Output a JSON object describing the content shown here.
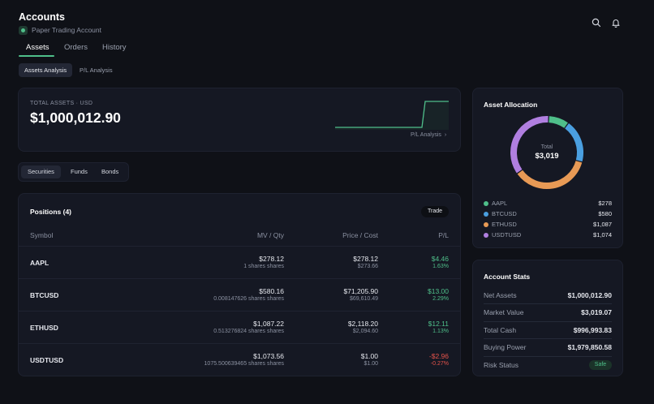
{
  "header": {
    "title": "Accounts",
    "account_name": "Paper Trading Account",
    "search_icon": "search-icon",
    "bell_icon": "bell-icon"
  },
  "tabs": [
    "Assets",
    "Orders",
    "History"
  ],
  "subtabs": [
    "Assets Analysis",
    "P/L Analysis"
  ],
  "total": {
    "label": "TOTAL ASSETS · USD",
    "value": "$1,000,012.90",
    "link": "P/L Analysis"
  },
  "segments": [
    "Securities",
    "Funds",
    "Bonds"
  ],
  "positions": {
    "title": "Positions (4)",
    "trade_label": "Trade",
    "headers": [
      "Symbol",
      "MV / Qty",
      "Price / Cost",
      "P/L"
    ],
    "rows": [
      {
        "symbol": "AAPL",
        "mv": "$278.12",
        "qty": "1 shares shares",
        "price": "$278.12",
        "cost": "$273.66",
        "pl": "$4.46",
        "pl_pct": "1.63%",
        "dir": "up"
      },
      {
        "symbol": "BTCUSD",
        "mv": "$580.16",
        "qty": "0.008147626 shares shares",
        "price": "$71,205.90",
        "cost": "$69,610.49",
        "pl": "$13.00",
        "pl_pct": "2.29%",
        "dir": "up"
      },
      {
        "symbol": "ETHUSD",
        "mv": "$1,087.22",
        "qty": "0.513276824 shares shares",
        "price": "$2,118.20",
        "cost": "$2,094.60",
        "pl": "$12.11",
        "pl_pct": "1.13%",
        "dir": "up"
      },
      {
        "symbol": "USDTUSD",
        "mv": "$1,073.56",
        "qty": "1075.500639465 shares shares",
        "price": "$1.00",
        "cost": "$1.00",
        "pl": "-$2.96",
        "pl_pct": "-0.27%",
        "dir": "down"
      }
    ]
  },
  "allocation": {
    "title": "Asset Allocation",
    "center_label": "Total",
    "center_value": "$3,019",
    "items": [
      {
        "name": "AAPL",
        "value": "$278",
        "amount": 278,
        "color": "#4fbf8a"
      },
      {
        "name": "BTCUSD",
        "value": "$580",
        "amount": 580,
        "color": "#4a9fe0"
      },
      {
        "name": "ETHUSD",
        "value": "$1,087",
        "amount": 1087,
        "color": "#e89a55"
      },
      {
        "name": "USDTUSD",
        "value": "$1,074",
        "amount": 1074,
        "color": "#b07fe0"
      }
    ]
  },
  "stats": {
    "title": "Account Stats",
    "items": [
      {
        "label": "Net Assets",
        "value": "$1,000,012.90"
      },
      {
        "label": "Market Value",
        "value": "$3,019.07"
      },
      {
        "label": "Total Cash",
        "value": "$996,993.83"
      },
      {
        "label": "Buying Power",
        "value": "$1,979,850.58"
      }
    ],
    "risk_label": "Risk Status",
    "risk_value": "Safe"
  },
  "colors": {
    "accent": "#4fbf8a",
    "negative": "#e5534b",
    "background": "#0f1117",
    "card": "#151823"
  }
}
